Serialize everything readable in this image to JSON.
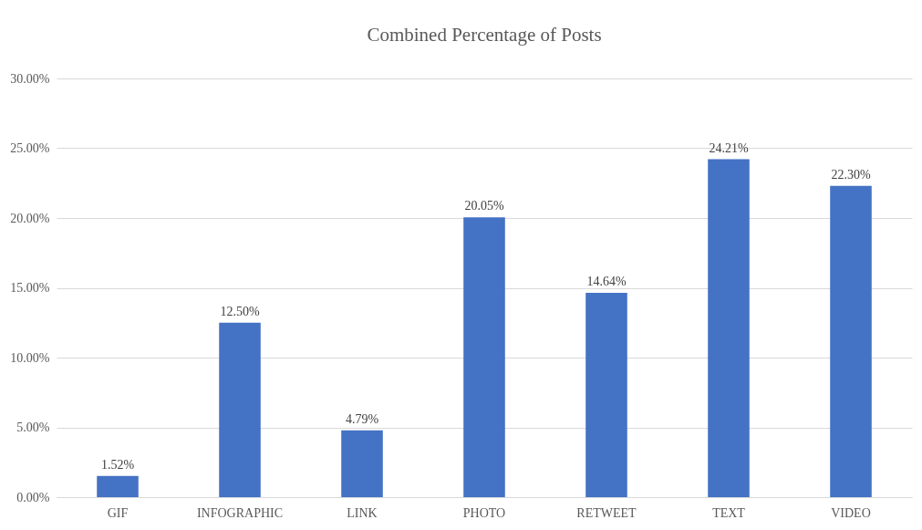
{
  "chart_data": {
    "type": "bar",
    "title": "Combined Percentage of Posts",
    "categories": [
      "GIF",
      "INFOGRAPHIC",
      "LINK",
      "PHOTO",
      "RETWEET",
      "TEXT",
      "VIDEO"
    ],
    "values": [
      1.52,
      12.5,
      4.79,
      20.05,
      14.64,
      24.21,
      22.3
    ],
    "value_labels": [
      "1.52%",
      "12.50%",
      "4.79%",
      "20.05%",
      "14.64%",
      "24.21%",
      "22.30%"
    ],
    "color": "#4472c4",
    "ylim": [
      0,
      30
    ],
    "yticks": [
      {
        "value": 0,
        "label": "0.00%"
      },
      {
        "value": 5,
        "label": "5.00%"
      },
      {
        "value": 10,
        "label": "10.00%"
      },
      {
        "value": 15,
        "label": "15.00%"
      },
      {
        "value": 20,
        "label": "20.00%"
      },
      {
        "value": 25,
        "label": "25.00%"
      },
      {
        "value": 30,
        "label": "30.00%"
      }
    ],
    "grid": "y"
  }
}
